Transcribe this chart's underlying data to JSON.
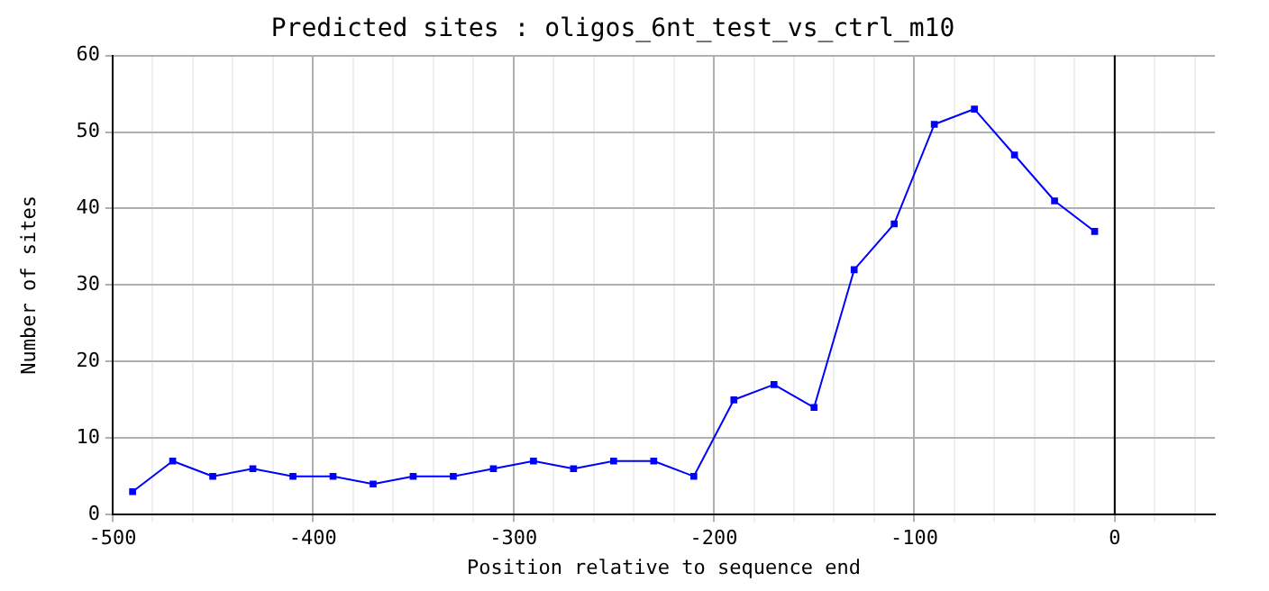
{
  "chart_data": {
    "type": "line",
    "title": "Predicted sites : oligos_6nt_test_vs_ctrl_m10",
    "xlabel": "Position relative to sequence end",
    "ylabel": "Number of sites",
    "x": [
      -490,
      -470,
      -450,
      -430,
      -410,
      -390,
      -370,
      -350,
      -330,
      -310,
      -290,
      -270,
      -250,
      -230,
      -210,
      -190,
      -170,
      -150,
      -130,
      -110,
      -90,
      -70,
      -50,
      -30,
      -10
    ],
    "series": [
      {
        "color": "#0000ff",
        "values": [
          3,
          7,
          5,
          6,
          5,
          5,
          4,
          5,
          5,
          6,
          7,
          6,
          7,
          7,
          5,
          15,
          17,
          14,
          32,
          38,
          51,
          53,
          47,
          41,
          37
        ]
      }
    ],
    "xlim": [
      -500,
      50
    ],
    "xticks": [
      -500,
      {
        "value": -480,
        "label": null
      },
      {
        "value": -460,
        "label": null
      },
      {
        "value": -440,
        "label": null
      },
      {
        "value": -420,
        "label": null
      },
      -400,
      {
        "value": -380,
        "label": null
      },
      {
        "value": -360,
        "label": null
      },
      {
        "value": -340,
        "label": null
      },
      {
        "value": -320,
        "label": null
      },
      -300,
      {
        "value": -280,
        "label": null
      },
      {
        "value": -260,
        "label": null
      },
      {
        "value": -240,
        "label": null
      },
      {
        "value": -220,
        "label": null
      },
      -200,
      {
        "value": -180,
        "label": null
      },
      {
        "value": -160,
        "label": null
      },
      {
        "value": -140,
        "label": null
      },
      {
        "value": -120,
        "label": null
      },
      -100,
      {
        "value": -80,
        "label": null
      },
      {
        "value": -60,
        "label": null
      },
      {
        "value": -40,
        "label": null
      },
      {
        "value": -20,
        "label": null
      },
      0,
      {
        "value": 20,
        "label": null
      },
      {
        "value": 40,
        "label": null
      }
    ],
    "ylim": [
      0,
      60
    ],
    "yticks": [
      0,
      10,
      20,
      30,
      40,
      50,
      60
    ],
    "ref_lines": [
      {
        "axis": "x",
        "value": 0,
        "color": "#000000"
      }
    ],
    "grid": true,
    "marker": "square",
    "line_style": "solid",
    "legend": false
  }
}
